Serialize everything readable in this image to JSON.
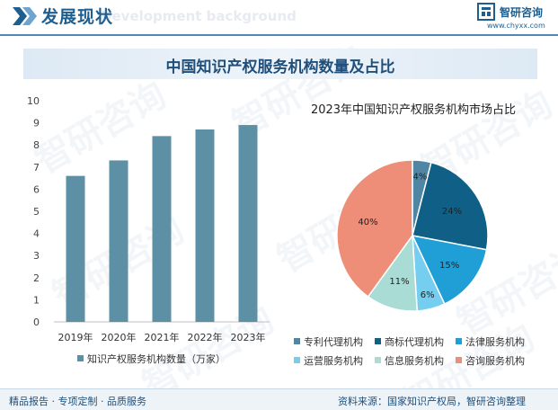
{
  "header": {
    "title": "发展现状",
    "subtitle": "Development background",
    "brand_name": "智研咨询",
    "brand_url": "www.chyxx.com"
  },
  "banner": {
    "title": "中国知识产权服务机构数量及占比"
  },
  "watermarks": [
    "智研咨询",
    "智研咨询",
    "智研咨询",
    "智研咨询",
    "智研咨询",
    "智研咨询",
    "智研咨询",
    "智研咨询"
  ],
  "footer": {
    "left": "精品报告 · 专项定制 · 品质服务",
    "source": "资料来源：国家知识产权局，智研咨询整理"
  },
  "chart_data": [
    {
      "type": "bar",
      "title": "",
      "categories": [
        "2019年",
        "2020年",
        "2021年",
        "2022年",
        "2023年"
      ],
      "series": [
        {
          "name": "知识产权服务机构数量（万家）",
          "values": [
            6.6,
            7.3,
            8.4,
            8.7,
            8.9
          ],
          "color": "#5d8fa5"
        }
      ],
      "ylim": [
        0,
        10
      ],
      "yticks": [
        0,
        1,
        2,
        3,
        4,
        5,
        6,
        7,
        8,
        9,
        10
      ],
      "grid": false,
      "legend": "bottom"
    },
    {
      "type": "pie",
      "title": "2023年中国知识产权服务机构市场占比",
      "labels": [
        "专利代理机构",
        "商标代理机构",
        "法律服务机构",
        "运营服务机构",
        "信息服务机构",
        "咨询服务机构"
      ],
      "values": [
        4,
        24,
        15,
        6,
        11,
        40
      ],
      "value_labels": [
        "4%",
        "24%",
        "15%",
        "6%",
        "11%",
        "40%"
      ],
      "colors": [
        "#4f86a3",
        "#0f5f86",
        "#1f9fd6",
        "#75cdf0",
        "#a8dcd4",
        "#ee8e78"
      ],
      "legend": "bottom"
    }
  ]
}
